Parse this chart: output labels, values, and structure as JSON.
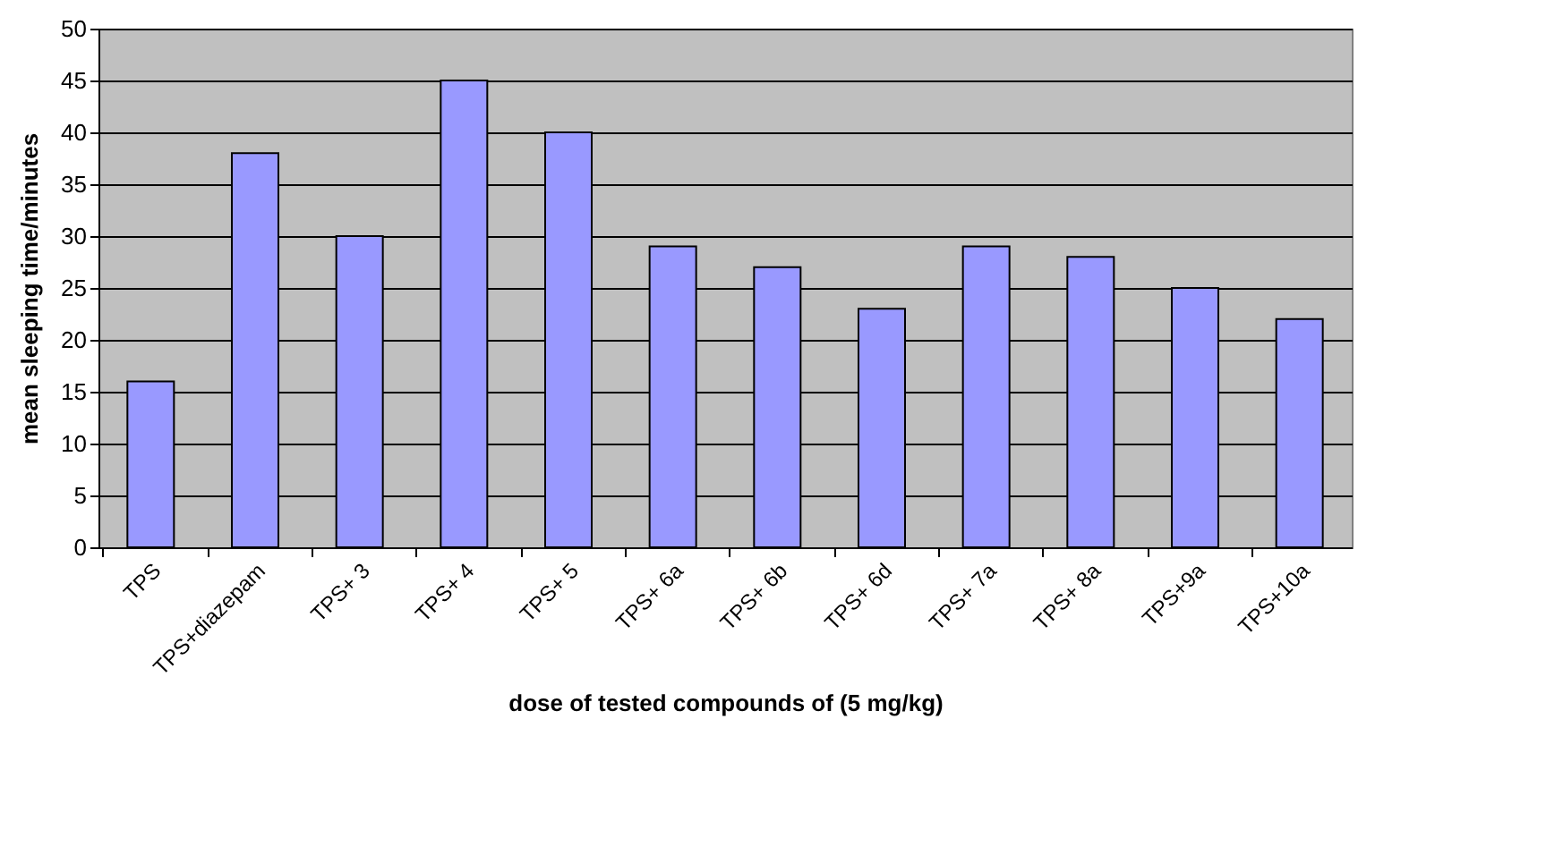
{
  "chart_data": {
    "type": "bar",
    "categories": [
      "TPS",
      "TPS+diazepam",
      "TPS+ 3",
      "TPS+ 4",
      "TPS+ 5",
      "TPS+ 6a",
      "TPS+ 6b",
      "TPS+ 6d",
      "TPS+ 7a",
      "TPS+ 8a",
      "TPS+9a",
      "TPS+10a"
    ],
    "values": [
      16,
      38,
      30,
      45,
      40,
      29,
      27,
      23,
      29,
      28,
      25,
      22
    ],
    "color": "#9999ff",
    "xlabel": "dose of tested compounds of (5 mg/kg)",
    "ylabel": "mean sleeping time/minutes",
    "ylim": [
      0,
      50
    ],
    "yticks": [
      0,
      5,
      10,
      15,
      20,
      25,
      30,
      35,
      40,
      45,
      50
    ],
    "grid": "y"
  }
}
